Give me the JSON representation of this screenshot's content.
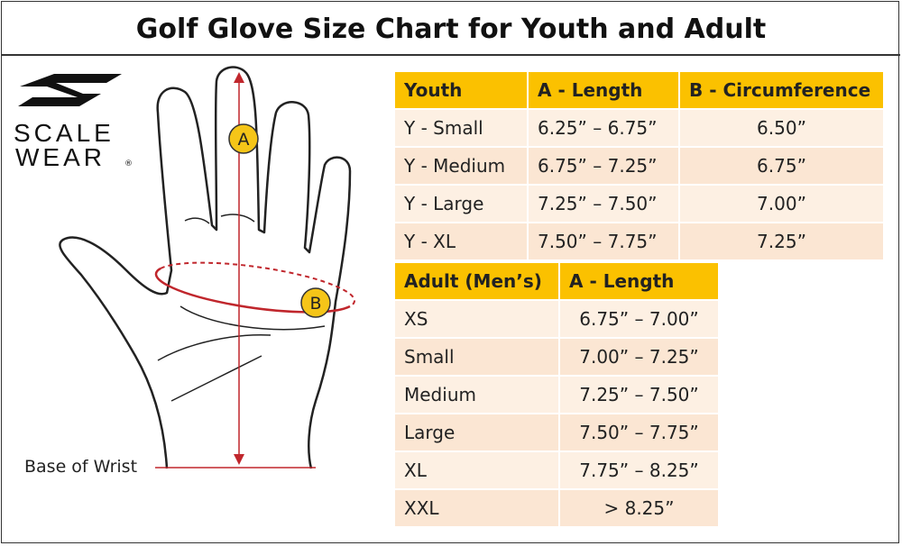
{
  "title": "Golf Glove Size Chart for Youth and Adult",
  "logo": {
    "line1": "SCALE",
    "line2": "WEAR",
    "mark": "®"
  },
  "diagram": {
    "label_a": "A",
    "label_b": "B",
    "wrist_label": "Base of Wrist"
  },
  "youth_table": {
    "header": [
      "Youth",
      "A - Length",
      "B - Circumference"
    ],
    "rows": [
      [
        "Y - Small",
        "6.25” – 6.75”",
        "6.50”"
      ],
      [
        "Y - Medium",
        "6.75” – 7.25”",
        "6.75”"
      ],
      [
        "Y - Large",
        "7.25” – 7.50”",
        "7.00”"
      ],
      [
        "Y - XL",
        "7.50” – 7.75”",
        "7.25”"
      ]
    ]
  },
  "adult_table": {
    "header": [
      "Adult (Men’s)",
      "A - Length"
    ],
    "rows": [
      [
        "XS",
        "6.75” – 7.00”"
      ],
      [
        "Small",
        "7.00” – 7.25”"
      ],
      [
        "Medium",
        "7.25” – 7.50”"
      ],
      [
        "Large",
        "7.50” – 7.75”"
      ],
      [
        "XL",
        "7.75” – 8.25”"
      ],
      [
        "XXL",
        "> 8.25”"
      ]
    ]
  }
}
